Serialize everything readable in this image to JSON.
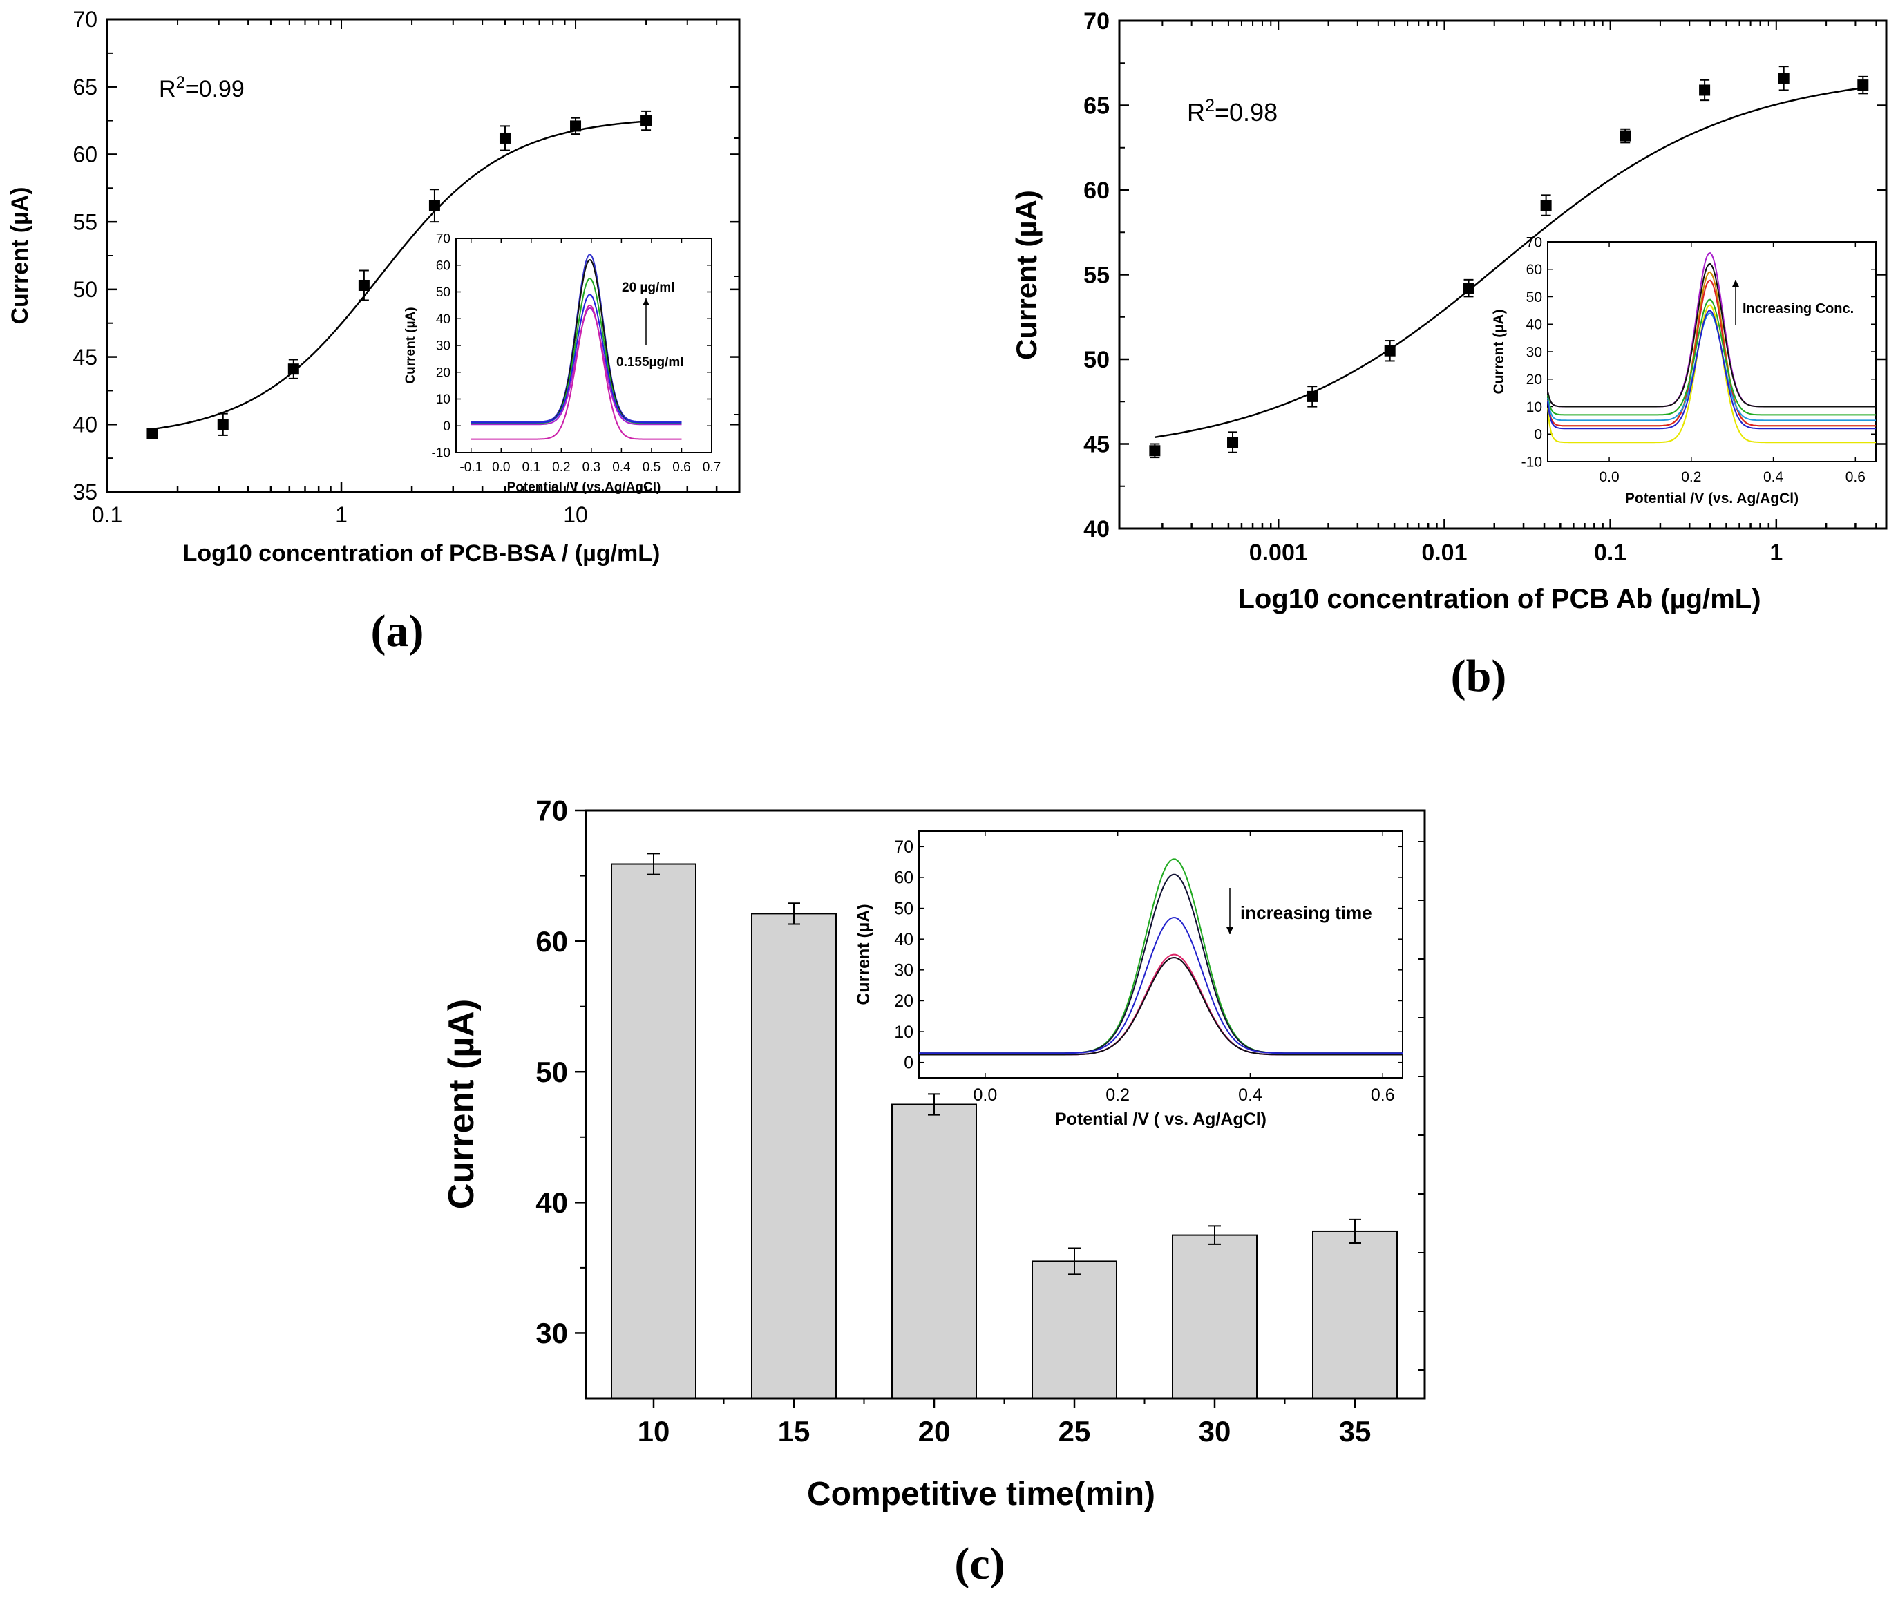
{
  "figure": {
    "background": "#ffffff",
    "bar_fill": "#d3d3d3",
    "axis_color": "#000000"
  },
  "chart_data": [
    {
      "id": "a",
      "panel_label": "(a)",
      "type": "scatter",
      "title": "",
      "xlabel": "Log10 concentration of PCB-BSA / (µg/mL)",
      "ylabel": "Current  (µA)",
      "xscale": "log",
      "xlim": [
        0.1,
        50
      ],
      "ylim": [
        35,
        70
      ],
      "xticks": [
        0.1,
        1,
        10
      ],
      "xtick_labels": [
        "0.1",
        "1",
        "10"
      ],
      "yticks": [
        35,
        40,
        45,
        50,
        55,
        60,
        65,
        70
      ],
      "annotation": {
        "base": "R",
        "sup": "2",
        "rest": "=0.99"
      },
      "points": [
        {
          "x": 0.156,
          "y": 39.3,
          "err": 0.3
        },
        {
          "x": 0.3125,
          "y": 40.0,
          "err": 0.8
        },
        {
          "x": 0.625,
          "y": 44.1,
          "err": 0.7
        },
        {
          "x": 1.25,
          "y": 50.3,
          "err": 1.1
        },
        {
          "x": 2.5,
          "y": 56.2,
          "err": 1.2
        },
        {
          "x": 5.0,
          "y": 61.2,
          "err": 0.9
        },
        {
          "x": 10.0,
          "y": 62.1,
          "err": 0.6
        },
        {
          "x": 20.0,
          "y": 62.5,
          "err": 0.7
        }
      ],
      "fit": {
        "model": "sigmoid",
        "bottom": 39.0,
        "top": 62.8,
        "x50": 1.45,
        "hill": 1.6
      },
      "inset": {
        "type": "line",
        "xlabel": "Potential /V (vs.Ag/AgCl)",
        "ylabel": "Current  (µA)",
        "xlim": [
          -0.15,
          0.7
        ],
        "ylim": [
          -10,
          70
        ],
        "xticks": [
          -0.1,
          0.0,
          0.1,
          0.2,
          0.3,
          0.4,
          0.5,
          0.6,
          0.7
        ],
        "xtick_labels": [
          "-0.1",
          "0.0",
          "0.1",
          "0.2",
          "0.3",
          "0.4",
          "0.5",
          "0.6",
          "0.7"
        ],
        "yticks": [
          -10,
          0,
          10,
          20,
          30,
          40,
          50,
          60,
          70
        ],
        "ytick_labels": [
          "-10",
          "0",
          "10",
          "20",
          "30",
          "40",
          "50",
          "60",
          "70"
        ],
        "label_top": "20 µg/ml",
        "label_bottom": "0.155µg/ml",
        "x_start": -0.1,
        "x_end": 0.6,
        "peak_center": 0.295,
        "peak_width": 0.062,
        "series": [
          {
            "color": "#3333cc",
            "base": 1.5,
            "peak": 64
          },
          {
            "color": "#111111",
            "base": 1.0,
            "peak": 62
          },
          {
            "color": "#22aa22",
            "base": 1.0,
            "peak": 55
          },
          {
            "color": "#2222dd",
            "base": 1.2,
            "peak": 49
          },
          {
            "color": "#aa22cc",
            "base": 0.5,
            "peak": 44
          },
          {
            "color": "#cc22aa",
            "base": -5.0,
            "peak": 45
          }
        ]
      }
    },
    {
      "id": "b",
      "panel_label": "(b)",
      "type": "scatter",
      "title": "",
      "xlabel": "Log10 concentration of PCB Ab (µg/mL)",
      "ylabel": "Current  (µA)",
      "xscale": "log",
      "xlim": [
        0.00011,
        4.6
      ],
      "ylim": [
        40,
        70
      ],
      "xticks": [
        0.001,
        0.01,
        0.1,
        1
      ],
      "xtick_labels": [
        "0.001",
        "0.01",
        "0.1",
        "1"
      ],
      "yticks": [
        40,
        45,
        50,
        55,
        60,
        65,
        70
      ],
      "annotation": {
        "base": "R",
        "sup": "2",
        "rest": "=0.98"
      },
      "points": [
        {
          "x": 0.00018,
          "y": 44.6,
          "err": 0.4
        },
        {
          "x": 0.00053,
          "y": 45.1,
          "err": 0.6
        },
        {
          "x": 0.0016,
          "y": 47.8,
          "err": 0.6
        },
        {
          "x": 0.0047,
          "y": 50.5,
          "err": 0.6
        },
        {
          "x": 0.014,
          "y": 54.2,
          "err": 0.5
        },
        {
          "x": 0.041,
          "y": 59.1,
          "err": 0.6
        },
        {
          "x": 0.123,
          "y": 63.2,
          "err": 0.4
        },
        {
          "x": 0.37,
          "y": 65.9,
          "err": 0.6
        },
        {
          "x": 1.11,
          "y": 66.6,
          "err": 0.7
        },
        {
          "x": 3.33,
          "y": 66.2,
          "err": 0.5
        }
      ],
      "fit": {
        "model": "sigmoid",
        "bottom": 44.3,
        "top": 67.0,
        "x50": 0.022,
        "hill": 0.62
      },
      "inset": {
        "type": "line",
        "xlabel": "Potential /V (vs. Ag/AgCl)",
        "ylabel": "Current  (µA)",
        "xlim": [
          -0.15,
          0.65
        ],
        "ylim": [
          -10,
          70
        ],
        "xticks": [
          0.0,
          0.2,
          0.4,
          0.6
        ],
        "xtick_labels": [
          "0.0",
          "0.2",
          "0.4",
          "0.6"
        ],
        "yticks": [
          -10,
          0,
          10,
          20,
          30,
          40,
          50,
          60,
          70
        ],
        "ytick_labels": [
          "-10",
          "0",
          "10",
          "20",
          "30",
          "40",
          "50",
          "60",
          "70"
        ],
        "label_top": "Increasing Conc.",
        "label_bottom": "",
        "x_start": -0.15,
        "x_end": 0.65,
        "peak_center": 0.245,
        "peak_width": 0.045,
        "series": [
          {
            "color": "#aa22cc",
            "base": 10.0,
            "peak": 66
          },
          {
            "color": "#111111",
            "base": 10.0,
            "peak": 62
          },
          {
            "color": "#cc8800",
            "base": 3.0,
            "peak": 59
          },
          {
            "color": "#dd2222",
            "base": 3.0,
            "peak": 56
          },
          {
            "color": "#22aa22",
            "base": 7.0,
            "peak": 49
          },
          {
            "color": "#2299dd",
            "base": 5.0,
            "peak": 44
          },
          {
            "color": "#e6e600",
            "base": -3.0,
            "peak": 47
          },
          {
            "color": "#2222cc",
            "base": 2.0,
            "peak": 45
          }
        ]
      }
    },
    {
      "id": "c",
      "panel_label": "(c)",
      "type": "bar",
      "title": "",
      "xlabel": "Competitive time(min)",
      "ylabel": "Current  (µA)",
      "categories": [
        "10",
        "15",
        "20",
        "25",
        "30",
        "35"
      ],
      "values": [
        65.9,
        62.1,
        47.5,
        35.5,
        37.5,
        37.8
      ],
      "errors": [
        0.8,
        0.8,
        0.8,
        1.0,
        0.7,
        0.9
      ],
      "ylim": [
        25,
        70
      ],
      "yticks": [
        30,
        40,
        50,
        60,
        70
      ],
      "inset": {
        "type": "line",
        "xlabel": "Potential /V ( vs. Ag/AgCl)",
        "ylabel": "Current  (µA)",
        "xlim": [
          -0.1,
          0.63
        ],
        "ylim": [
          -5,
          75
        ],
        "xticks": [
          0.0,
          0.2,
          0.4,
          0.6
        ],
        "xtick_labels": [
          "0.0",
          "0.2",
          "0.4",
          "0.6"
        ],
        "yticks": [
          0,
          10,
          20,
          30,
          40,
          50,
          60,
          70
        ],
        "ytick_labels": [
          "0",
          "10",
          "20",
          "30",
          "40",
          "50",
          "60",
          "70"
        ],
        "label_top": "increasing time",
        "label_bottom": "",
        "x_start": -0.1,
        "x_end": 0.63,
        "peak_center": 0.285,
        "peak_width": 0.06,
        "series": [
          {
            "color": "#22aa22",
            "base": 3.0,
            "peak": 66
          },
          {
            "color": "#111133",
            "base": 3.0,
            "peak": 61
          },
          {
            "color": "#2222cc",
            "base": 3.0,
            "peak": 47
          },
          {
            "color": "#dd2266",
            "base": 2.5,
            "peak": 35
          },
          {
            "color": "#aa22cc",
            "base": 2.5,
            "peak": 34
          },
          {
            "color": "#111111",
            "base": 2.5,
            "peak": 34
          }
        ]
      }
    }
  ]
}
